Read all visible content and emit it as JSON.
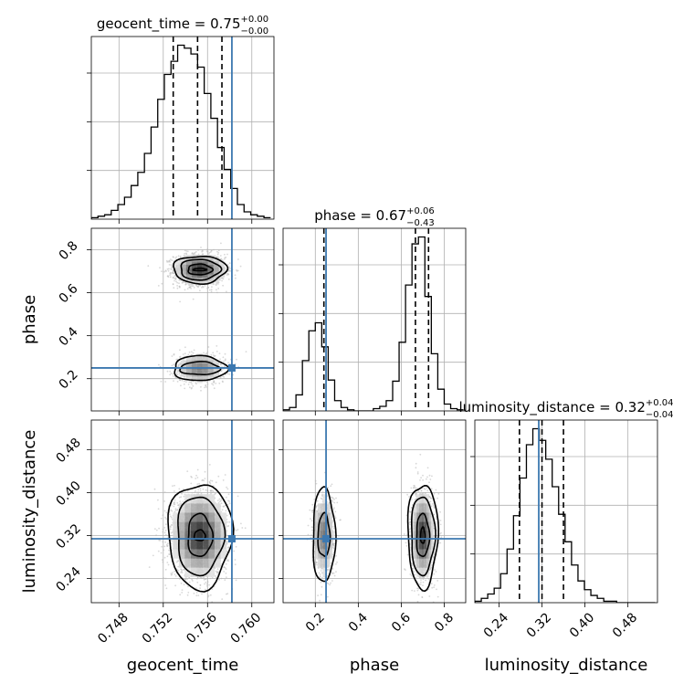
{
  "chart_data": {
    "type": "corner",
    "parameters": [
      "geocent_time",
      "phase",
      "luminosity_distance"
    ],
    "titles": [
      {
        "param": "geocent_time",
        "median": "0.75",
        "plus": "+0.00",
        "minus": "−0.00",
        "prefix": "geocent_time = "
      },
      {
        "param": "phase",
        "median": "0.67",
        "plus": "+0.06",
        "minus": "−0.43",
        "prefix": "phase = "
      },
      {
        "param": "luminosity_distance",
        "median": "0.32",
        "plus": "+0.04",
        "minus": "−0.04",
        "prefix": "luminosity_distance = "
      }
    ],
    "ranges": {
      "geocent_time": [
        0.7455,
        0.762
      ],
      "phase": [
        0.05,
        0.9
      ],
      "luminosity_distance": [
        0.195,
        0.535
      ]
    },
    "ticks": {
      "geocent_time": [
        "0.748",
        "0.752",
        "0.756",
        "0.760"
      ],
      "phase": [
        "0.2",
        "0.4",
        "0.6",
        "0.8"
      ],
      "luminosity_distance": [
        "0.24",
        "0.32",
        "0.40",
        "0.48"
      ]
    },
    "injection": {
      "geocent_time": 0.7582,
      "phase": 0.25,
      "luminosity_distance": 0.314
    },
    "quantiles": {
      "geocent_time": [
        0.7529,
        0.7551,
        0.7573
      ],
      "phase": [
        0.24,
        0.666,
        0.727
      ],
      "luminosity_distance": [
        0.278,
        0.32,
        0.36
      ]
    },
    "hist1d": {
      "geocent_time": {
        "edges": [
          0.7455,
          0.7461,
          0.7467,
          0.7473,
          0.7479,
          0.7485,
          0.7491,
          0.7497,
          0.7503,
          0.7509,
          0.7515,
          0.7521,
          0.7527,
          0.7533,
          0.7539,
          0.7545,
          0.7551,
          0.7557,
          0.7563,
          0.7569,
          0.7575,
          0.7581,
          0.7587,
          0.7593,
          0.7599,
          0.7605,
          0.7611,
          0.7617
        ],
        "counts": [
          1,
          2,
          3,
          6,
          10,
          15,
          23,
          32,
          45,
          63,
          82,
          99,
          108,
          119,
          117,
          113,
          104,
          86,
          69,
          49,
          34,
          21,
          10,
          5,
          3,
          2,
          1
        ]
      },
      "phase": {
        "edges": [
          0.05,
          0.08,
          0.11,
          0.14,
          0.17,
          0.2,
          0.23,
          0.26,
          0.29,
          0.32,
          0.35,
          0.38,
          0.41,
          0.44,
          0.47,
          0.5,
          0.53,
          0.56,
          0.59,
          0.62,
          0.65,
          0.68,
          0.71,
          0.74,
          0.77,
          0.8,
          0.83,
          0.86,
          0.89
        ],
        "counts": [
          1,
          3,
          14,
          44,
          70,
          77,
          56,
          27,
          9,
          3,
          1,
          0,
          0,
          0,
          2,
          4,
          9,
          26,
          60,
          110,
          146,
          152,
          100,
          50,
          19,
          6,
          2,
          1
        ]
      },
      "luminosity_distance": {
        "edges": [
          0.195,
          0.207,
          0.219,
          0.231,
          0.243,
          0.255,
          0.267,
          0.279,
          0.291,
          0.303,
          0.315,
          0.327,
          0.339,
          0.351,
          0.363,
          0.375,
          0.387,
          0.399,
          0.411,
          0.423,
          0.435,
          0.447,
          0.459,
          0.471,
          0.483,
          0.495,
          0.507,
          0.519,
          0.531
        ],
        "counts": [
          1,
          3,
          6,
          10,
          20,
          37,
          60,
          86,
          109,
          120,
          112,
          99,
          80,
          61,
          42,
          26,
          15,
          9,
          5,
          3,
          1,
          1,
          0,
          0,
          0,
          0,
          0,
          0
        ]
      }
    },
    "hist2d": [
      {
        "x": "geocent_time",
        "y": "phase",
        "modes": [
          {
            "cx": 0.7553,
            "cy": 0.708,
            "sx": 0.0011,
            "sy": 0.034,
            "weight": 0.72
          },
          {
            "cx": 0.7553,
            "cy": 0.248,
            "sx": 0.0011,
            "sy": 0.034,
            "weight": 0.28
          }
        ],
        "contours": [
          {
            "mode": 0,
            "rx": [
              0.0006,
              0.0011,
              0.0018,
              0.0024
            ],
            "ry": [
              0.006,
              0.025,
              0.048,
              0.064
            ]
          },
          {
            "mode": 1,
            "rx": [
              0.0018,
              0.0024
            ],
            "ry": [
              0.03,
              0.058
            ]
          }
        ]
      },
      {
        "x": "geocent_time",
        "y": "luminosity_distance",
        "modes": [
          {
            "cx": 0.7553,
            "cy": 0.32,
            "sx": 0.0012,
            "sy": 0.038,
            "weight": 1.0
          }
        ],
        "contours": [
          {
            "mode": 0,
            "rx": [
              0.0005,
              0.0011,
              0.0021,
              0.0029
            ],
            "ry": [
              0.01,
              0.04,
              0.073,
              0.098
            ]
          }
        ]
      },
      {
        "x": "phase",
        "y": "luminosity_distance",
        "modes": [
          {
            "cx": 0.24,
            "cy": 0.32,
            "sx": 0.025,
            "sy": 0.038,
            "weight": 0.3
          },
          {
            "cx": 0.7,
            "cy": 0.32,
            "sx": 0.025,
            "sy": 0.038,
            "weight": 0.7
          }
        ],
        "contours": [
          {
            "mode": 0,
            "rx": [
              0.028,
              0.052
            ],
            "ry": [
              0.04,
              0.088
            ]
          },
          {
            "mode": 1,
            "rx": [
              0.01,
              0.03,
              0.055,
              0.07
            ],
            "ry": [
              0.015,
              0.04,
              0.073,
              0.097
            ]
          }
        ]
      }
    ],
    "colors": {
      "truth": "#3c78b0",
      "hist": "#000000",
      "scatter": "#b8b8b8",
      "density_dark": "#222222",
      "grid": "#b0b0b0"
    },
    "grid": true
  }
}
